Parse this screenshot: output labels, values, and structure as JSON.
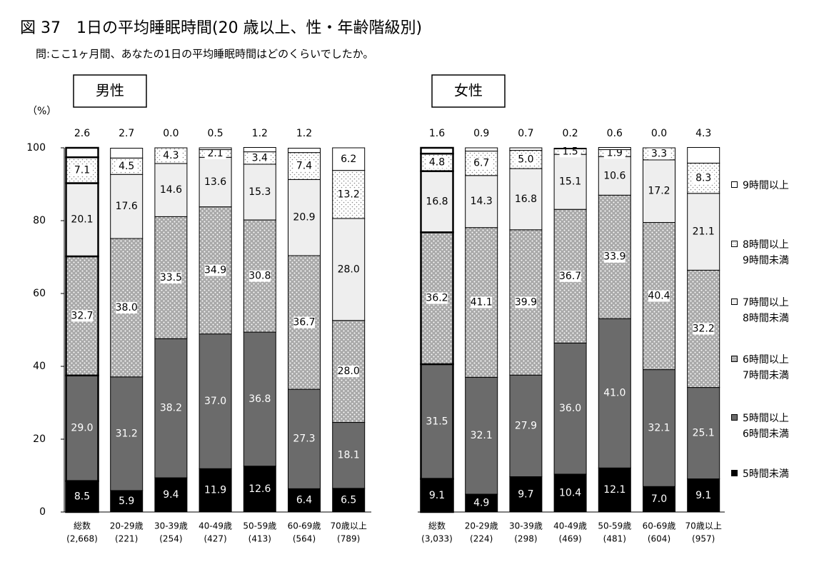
{
  "title": "図 37　1日の平均睡眠時間(20 歳以上、性・年齢階級別)",
  "subtitle": "問:ここ1ヶ月間、あなたの1日の平均睡眠時間はどのくらいでしたか。",
  "chart_data": [
    {
      "type": "bar",
      "stacked": true,
      "panel_title": "男性",
      "y_label": "（%）",
      "categories": [
        "総数",
        "20-29歳",
        "30-39歳",
        "40-49歳",
        "50-59歳",
        "60-69歳",
        "70歳以上"
      ],
      "sample_sizes": [
        "(2,668)",
        "(221)",
        "(254)",
        "(427)",
        "(413)",
        "(564)",
        "(789)"
      ],
      "ylim": [
        0,
        100
      ],
      "yticks": [
        0,
        20,
        40,
        60,
        80,
        100
      ],
      "series": [
        {
          "name": "5時間未満",
          "color": "#000000",
          "values": [
            8.5,
            5.9,
            9.4,
            11.9,
            12.6,
            6.4,
            6.5
          ],
          "value_labels": [
            "8.5",
            "5.9",
            "9.4",
            "11.9",
            "12.6",
            "6.4",
            "6.5"
          ]
        },
        {
          "name": "5時間以上\n6時間未満",
          "color": "#6b6b6b",
          "values": [
            29.0,
            31.2,
            38.2,
            37.0,
            36.8,
            27.3,
            18.1
          ],
          "value_labels": [
            "29.0",
            "31.2",
            "38.2",
            "37.0",
            "36.8",
            "27.3",
            "18.1"
          ]
        },
        {
          "name": "6時間以上\n7時間未満",
          "color": "#a9a9a9",
          "pattern": "dots",
          "values": [
            32.7,
            38.0,
            33.5,
            34.9,
            30.8,
            36.7,
            28.0
          ],
          "value_labels": [
            "32.7",
            "38.0",
            "33.5",
            "34.9",
            "30.8",
            "36.7",
            "28.0"
          ]
        },
        {
          "name": "7時間以上\n8時間未満",
          "color": "#eeeeee",
          "values": [
            20.1,
            17.6,
            14.6,
            13.6,
            15.3,
            20.9,
            28.0
          ],
          "value_labels": [
            "20.1",
            "17.6",
            "14.6",
            "13.6",
            "15.3",
            "20.9",
            "28.0"
          ]
        },
        {
          "name": "8時間以上\n9時間未満",
          "color": "#ffffff",
          "pattern": "dots",
          "values": [
            7.1,
            4.5,
            4.3,
            2.1,
            3.4,
            7.4,
            13.2
          ],
          "value_labels": [
            "7.1",
            "4.5",
            "4.3",
            "2.1",
            "3.4",
            "7.4",
            "13.2"
          ]
        },
        {
          "name": "9時間以上",
          "color": "#ffffff",
          "values": [
            2.6,
            2.7,
            0.0,
            0.5,
            1.2,
            1.2,
            6.2
          ],
          "value_labels": [
            "2.6",
            "2.7",
            "0.0",
            "0.5",
            "1.2",
            "1.2",
            "6.2"
          ]
        }
      ]
    },
    {
      "type": "bar",
      "stacked": true,
      "panel_title": "女性",
      "legend": "right",
      "categories": [
        "総数",
        "20-29歳",
        "30-39歳",
        "40-49歳",
        "50-59歳",
        "60-69歳",
        "70歳以上"
      ],
      "sample_sizes": [
        "(3,033)",
        "(224)",
        "(298)",
        "(469)",
        "(481)",
        "(604)",
        "(957)"
      ],
      "ylim": [
        0,
        100
      ],
      "series": [
        {
          "name": "5時間未満",
          "color": "#000000",
          "values": [
            9.1,
            4.9,
            9.7,
            10.4,
            12.1,
            7.0,
            9.1
          ],
          "value_labels": [
            "9.1",
            "4.9",
            "9.7",
            "10.4",
            "12.1",
            "7.0",
            "9.1"
          ]
        },
        {
          "name": "5時間以上\n6時間未満",
          "color": "#6b6b6b",
          "values": [
            31.5,
            32.1,
            27.9,
            36.0,
            41.0,
            32.1,
            25.1
          ],
          "value_labels": [
            "31.5",
            "32.1",
            "27.9",
            "36.0",
            "41.0",
            "32.1",
            "25.1"
          ]
        },
        {
          "name": "6時間以上\n7時間未満",
          "color": "#a9a9a9",
          "pattern": "dots",
          "values": [
            36.2,
            41.1,
            39.9,
            36.7,
            33.9,
            40.4,
            32.2
          ],
          "value_labels": [
            "36.2",
            "41.1",
            "39.9",
            "36.7",
            "33.9",
            "40.4",
            "32.2"
          ]
        },
        {
          "name": "7時間以上\n8時間未満",
          "color": "#eeeeee",
          "values": [
            16.8,
            14.3,
            16.8,
            15.1,
            10.6,
            17.2,
            21.1
          ],
          "value_labels": [
            "16.8",
            "14.3",
            "16.8",
            "15.1",
            "10.6",
            "17.2",
            "21.1"
          ]
        },
        {
          "name": "8時間以上\n9時間未満",
          "color": "#ffffff",
          "pattern": "dots",
          "values": [
            4.8,
            6.7,
            5.0,
            1.5,
            1.9,
            3.3,
            8.3
          ],
          "value_labels": [
            "4.8",
            "6.7",
            "5.0",
            "1.5",
            "1.9",
            "3.3",
            "8.3"
          ]
        },
        {
          "name": "9時間以上",
          "color": "#ffffff",
          "values": [
            1.6,
            0.9,
            0.7,
            0.2,
            0.6,
            0.0,
            4.3
          ],
          "value_labels": [
            "1.6",
            "0.9",
            "0.7",
            "0.2",
            "0.6",
            "0.0",
            "4.3"
          ]
        }
      ]
    }
  ]
}
